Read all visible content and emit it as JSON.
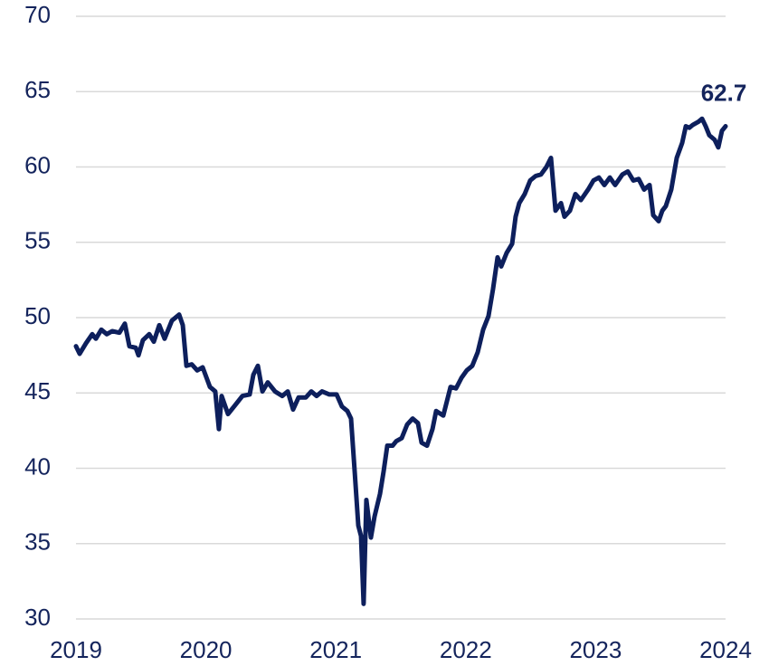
{
  "chart_data": {
    "type": "line",
    "x": [
      2019.0,
      2019.028,
      2019.077,
      2019.125,
      2019.153,
      2019.195,
      2019.237,
      2019.279,
      2019.334,
      2019.376,
      2019.411,
      2019.46,
      2019.481,
      2019.515,
      2019.564,
      2019.599,
      2019.641,
      2019.682,
      2019.738,
      2019.794,
      2019.822,
      2019.85,
      2019.891,
      2019.933,
      2019.975,
      2020.031,
      2020.072,
      2020.1,
      2020.121,
      2020.17,
      2020.226,
      2020.281,
      2020.337,
      2020.365,
      2020.4,
      2020.435,
      2020.476,
      2020.532,
      2020.588,
      2020.63,
      2020.671,
      2020.713,
      2020.769,
      2020.811,
      2020.852,
      2020.894,
      2020.95,
      2021.006,
      2021.047,
      2021.089,
      2021.117,
      2021.145,
      2021.173,
      2021.194,
      2021.214,
      2021.235,
      2021.27,
      2021.298,
      2021.34,
      2021.368,
      2021.396,
      2021.437,
      2021.465,
      2021.507,
      2021.549,
      2021.591,
      2021.632,
      2021.66,
      2021.702,
      2021.744,
      2021.772,
      2021.827,
      2021.883,
      2021.925,
      2021.967,
      2022.008,
      2022.05,
      2022.092,
      2022.134,
      2022.175,
      2022.21,
      2022.245,
      2022.273,
      2022.315,
      2022.357,
      2022.384,
      2022.412,
      2022.454,
      2022.496,
      2022.538,
      2022.579,
      2022.621,
      2022.656,
      2022.691,
      2022.733,
      2022.76,
      2022.802,
      2022.844,
      2022.886,
      2022.942,
      2022.983,
      2023.025,
      2023.067,
      2023.109,
      2023.15,
      2023.206,
      2023.248,
      2023.29,
      2023.331,
      2023.373,
      2023.415,
      2023.443,
      2023.485,
      2023.513,
      2023.54,
      2023.582,
      2023.624,
      2023.666,
      2023.694,
      2023.721,
      2023.749,
      2023.791,
      2023.819,
      2023.847,
      2023.875,
      2023.916,
      2023.944,
      2023.972,
      2024.0
    ],
    "series": [
      {
        "color": "#0d1f5c",
        "values": [
          48.1,
          47.6,
          48.3,
          48.9,
          48.6,
          49.2,
          48.9,
          49.1,
          49.0,
          49.6,
          48.1,
          48.0,
          47.5,
          48.5,
          48.9,
          48.4,
          49.5,
          48.6,
          49.8,
          50.2,
          49.5,
          46.8,
          46.9,
          46.5,
          46.7,
          45.4,
          45.1,
          42.6,
          44.8,
          43.6,
          44.2,
          44.8,
          44.9,
          46.2,
          46.8,
          45.1,
          45.7,
          45.1,
          44.8,
          45.1,
          43.9,
          44.7,
          44.7,
          45.1,
          44.8,
          45.1,
          44.9,
          44.9,
          44.1,
          43.8,
          43.3,
          39.8,
          36.2,
          35.5,
          31.0,
          37.9,
          35.4,
          36.8,
          38.3,
          39.8,
          41.5,
          41.5,
          41.8,
          42.0,
          42.9,
          43.3,
          43.0,
          41.7,
          41.5,
          42.6,
          43.8,
          43.5,
          45.4,
          45.3,
          46.0,
          46.5,
          46.8,
          47.7,
          49.2,
          50.1,
          51.9,
          54.0,
          53.4,
          54.3,
          54.9,
          56.7,
          57.6,
          58.2,
          59.1,
          59.4,
          59.5,
          60.0,
          60.6,
          57.1,
          57.6,
          56.7,
          57.1,
          58.2,
          57.8,
          58.5,
          59.1,
          59.3,
          58.8,
          59.3,
          58.8,
          59.5,
          59.7,
          59.1,
          59.2,
          58.5,
          58.8,
          56.8,
          56.4,
          57.1,
          57.4,
          58.5,
          60.6,
          61.6,
          62.7,
          62.6,
          62.8,
          63.0,
          63.2,
          62.7,
          62.1,
          61.8,
          61.3,
          62.4,
          62.7
        ]
      }
    ],
    "annotations": [
      {
        "text": "62.7"
      }
    ],
    "xlim": [
      2019,
      2024
    ],
    "xticks": [
      2019,
      2020,
      2021,
      2022,
      2023,
      2024
    ],
    "ylim": [
      30,
      70
    ],
    "yticks": [
      30,
      35,
      40,
      45,
      50,
      55,
      60,
      65,
      70
    ],
    "grid": true
  }
}
